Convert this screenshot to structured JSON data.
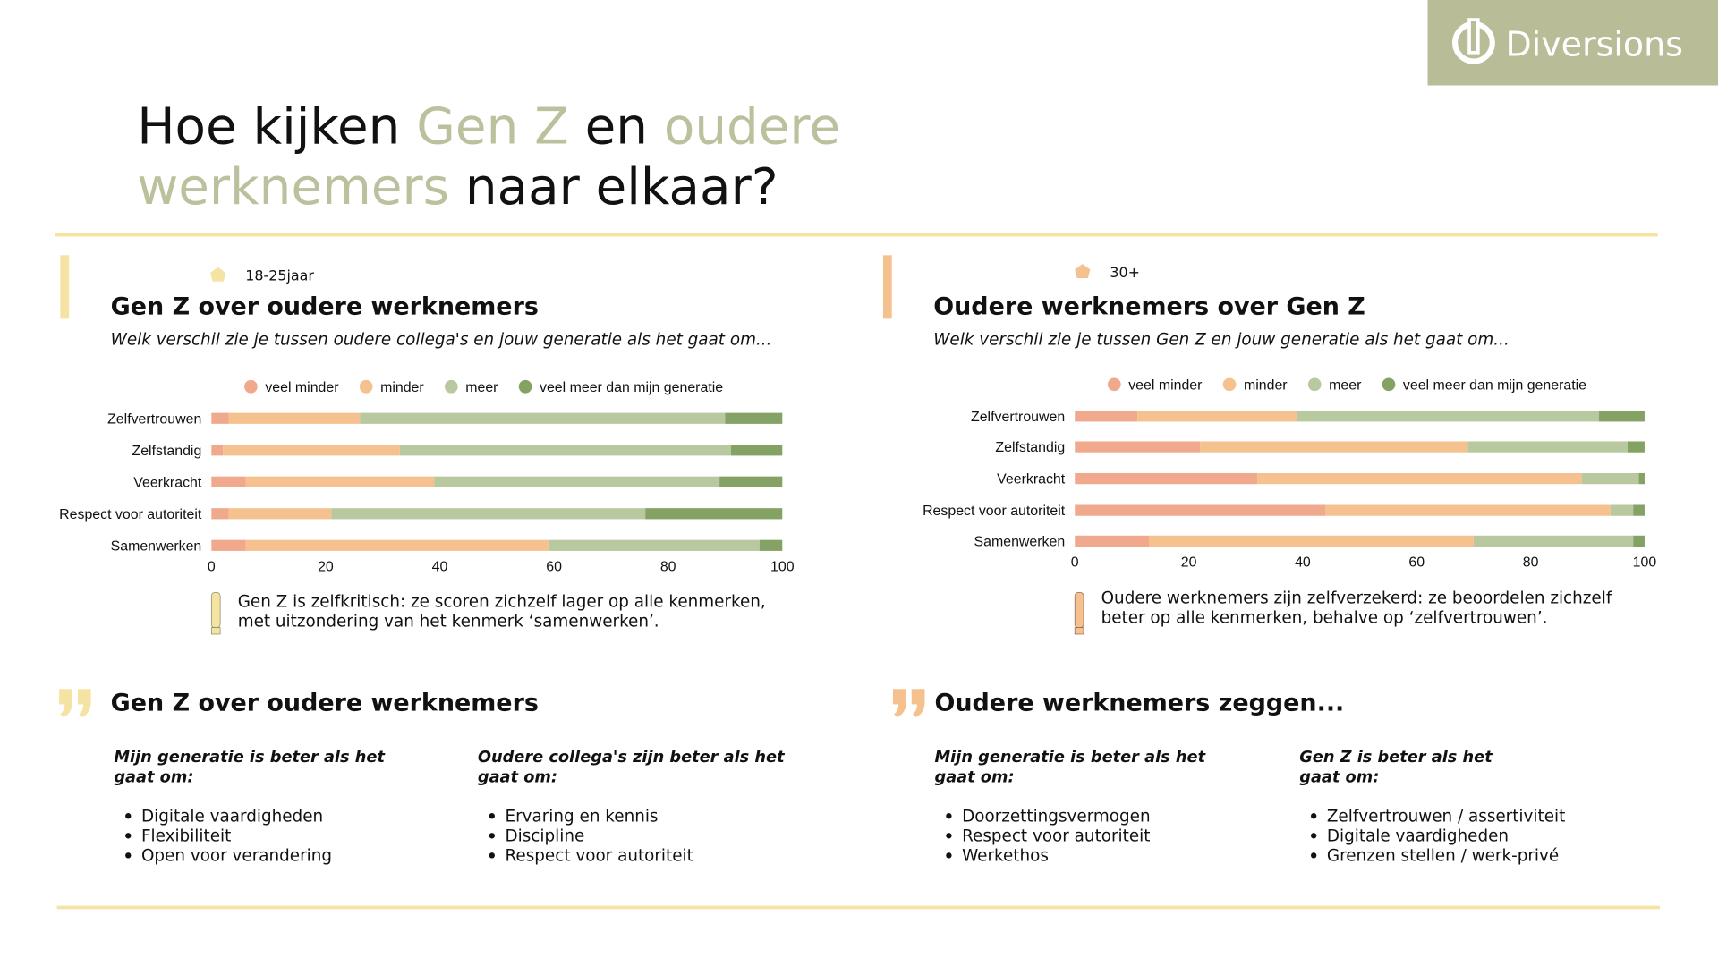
{
  "logo": "Diversions",
  "title": [
    [
      "Hoe kijken ",
      "Gen Z",
      " en ",
      "oudere"
    ],
    [
      "werknemers",
      " naar elkaar?"
    ]
  ],
  "panels": [
    {
      "tag": "18-25jaar",
      "heading": "Gen Z over oudere werknemers",
      "question": "Welk verschil zie je tussen oudere collega's en jouw generatie als het gaat om...",
      "note": [
        "Gen Z is zelfkritisch: ze scoren zichzelf lager op alle kenmerken,",
        "met uitzondering van het kenmerk ‘samenwerken’."
      ]
    },
    {
      "tag": "30+",
      "heading": "Oudere werknemers over Gen Z",
      "question": "Welk verschil zie je tussen Gen Z en jouw generatie als het gaat om...",
      "note": [
        "Oudere werknemers zijn zelfverzekerd: ze beoordelen zichzelf",
        "beter op alle kenmerken, behalve op ‘zelfvertrouwen’."
      ]
    }
  ],
  "chart_data": [
    {
      "type": "bar",
      "orientation": "horizontal",
      "stacked": true,
      "categories": [
        "Zelfvertrouwen",
        "Zelfstandig",
        "Veerkracht",
        "Respect voor autoriteit",
        "Samenwerken"
      ],
      "series": [
        {
          "name": "veel minder",
          "color": "#f0a98c",
          "values": [
            3,
            2,
            6,
            3,
            6
          ]
        },
        {
          "name": "minder",
          "color": "#f5c28f",
          "values": [
            23,
            31,
            33,
            18,
            53
          ]
        },
        {
          "name": "meer",
          "color": "#b8c9a0",
          "values": [
            64,
            58,
            50,
            55,
            37
          ]
        },
        {
          "name": "veel meer dan mijn generatie",
          "color": "#84a263",
          "values": [
            10,
            9,
            11,
            24,
            4
          ]
        }
      ],
      "xlim": [
        0,
        100
      ],
      "xticks": [
        0,
        20,
        40,
        60,
        80,
        100
      ]
    },
    {
      "type": "bar",
      "orientation": "horizontal",
      "stacked": true,
      "categories": [
        "Zelfvertrouwen",
        "Zelfstandig",
        "Veerkracht",
        "Respect voor autoriteit",
        "Samenwerken"
      ],
      "series": [
        {
          "name": "veel minder",
          "color": "#f0a98c",
          "values": [
            11,
            22,
            32,
            44,
            13
          ]
        },
        {
          "name": "minder",
          "color": "#f5c28f",
          "values": [
            28,
            47,
            57,
            50,
            57
          ]
        },
        {
          "name": "meer",
          "color": "#b8c9a0",
          "values": [
            53,
            28,
            10,
            4,
            28
          ]
        },
        {
          "name": "veel meer dan mijn generatie",
          "color": "#84a263",
          "values": [
            8,
            3,
            1,
            2,
            2
          ]
        }
      ],
      "xlim": [
        0,
        100
      ],
      "xticks": [
        0,
        20,
        40,
        60,
        80,
        100
      ]
    }
  ],
  "quotes": [
    {
      "heading": "Gen Z over oudere werknemers",
      "columns": [
        {
          "heading": [
            "Mijn generatie is beter als het",
            "gaat om:"
          ],
          "items": [
            "Digitale vaardigheden",
            "Flexibiliteit",
            "Open voor verandering"
          ]
        },
        {
          "heading": [
            "Oudere collega's zijn beter als het",
            "gaat om:"
          ],
          "items": [
            "Ervaring en kennis",
            "Discipline",
            "Respect voor autoriteit"
          ]
        }
      ]
    },
    {
      "heading": "Oudere werknemers zeggen...",
      "columns": [
        {
          "heading": [
            "Mijn generatie is beter als het",
            "gaat om:"
          ],
          "items": [
            "Doorzettingsvermogen",
            "Respect voor autoriteit",
            "Werkethos"
          ]
        },
        {
          "heading": [
            "Gen Z is beter als het",
            "gaat om:"
          ],
          "items": [
            "Zelfvertrouwen / assertiviteit",
            "Digitale vaardigheden",
            "Grenzen stellen / werk-privé"
          ]
        }
      ]
    }
  ]
}
